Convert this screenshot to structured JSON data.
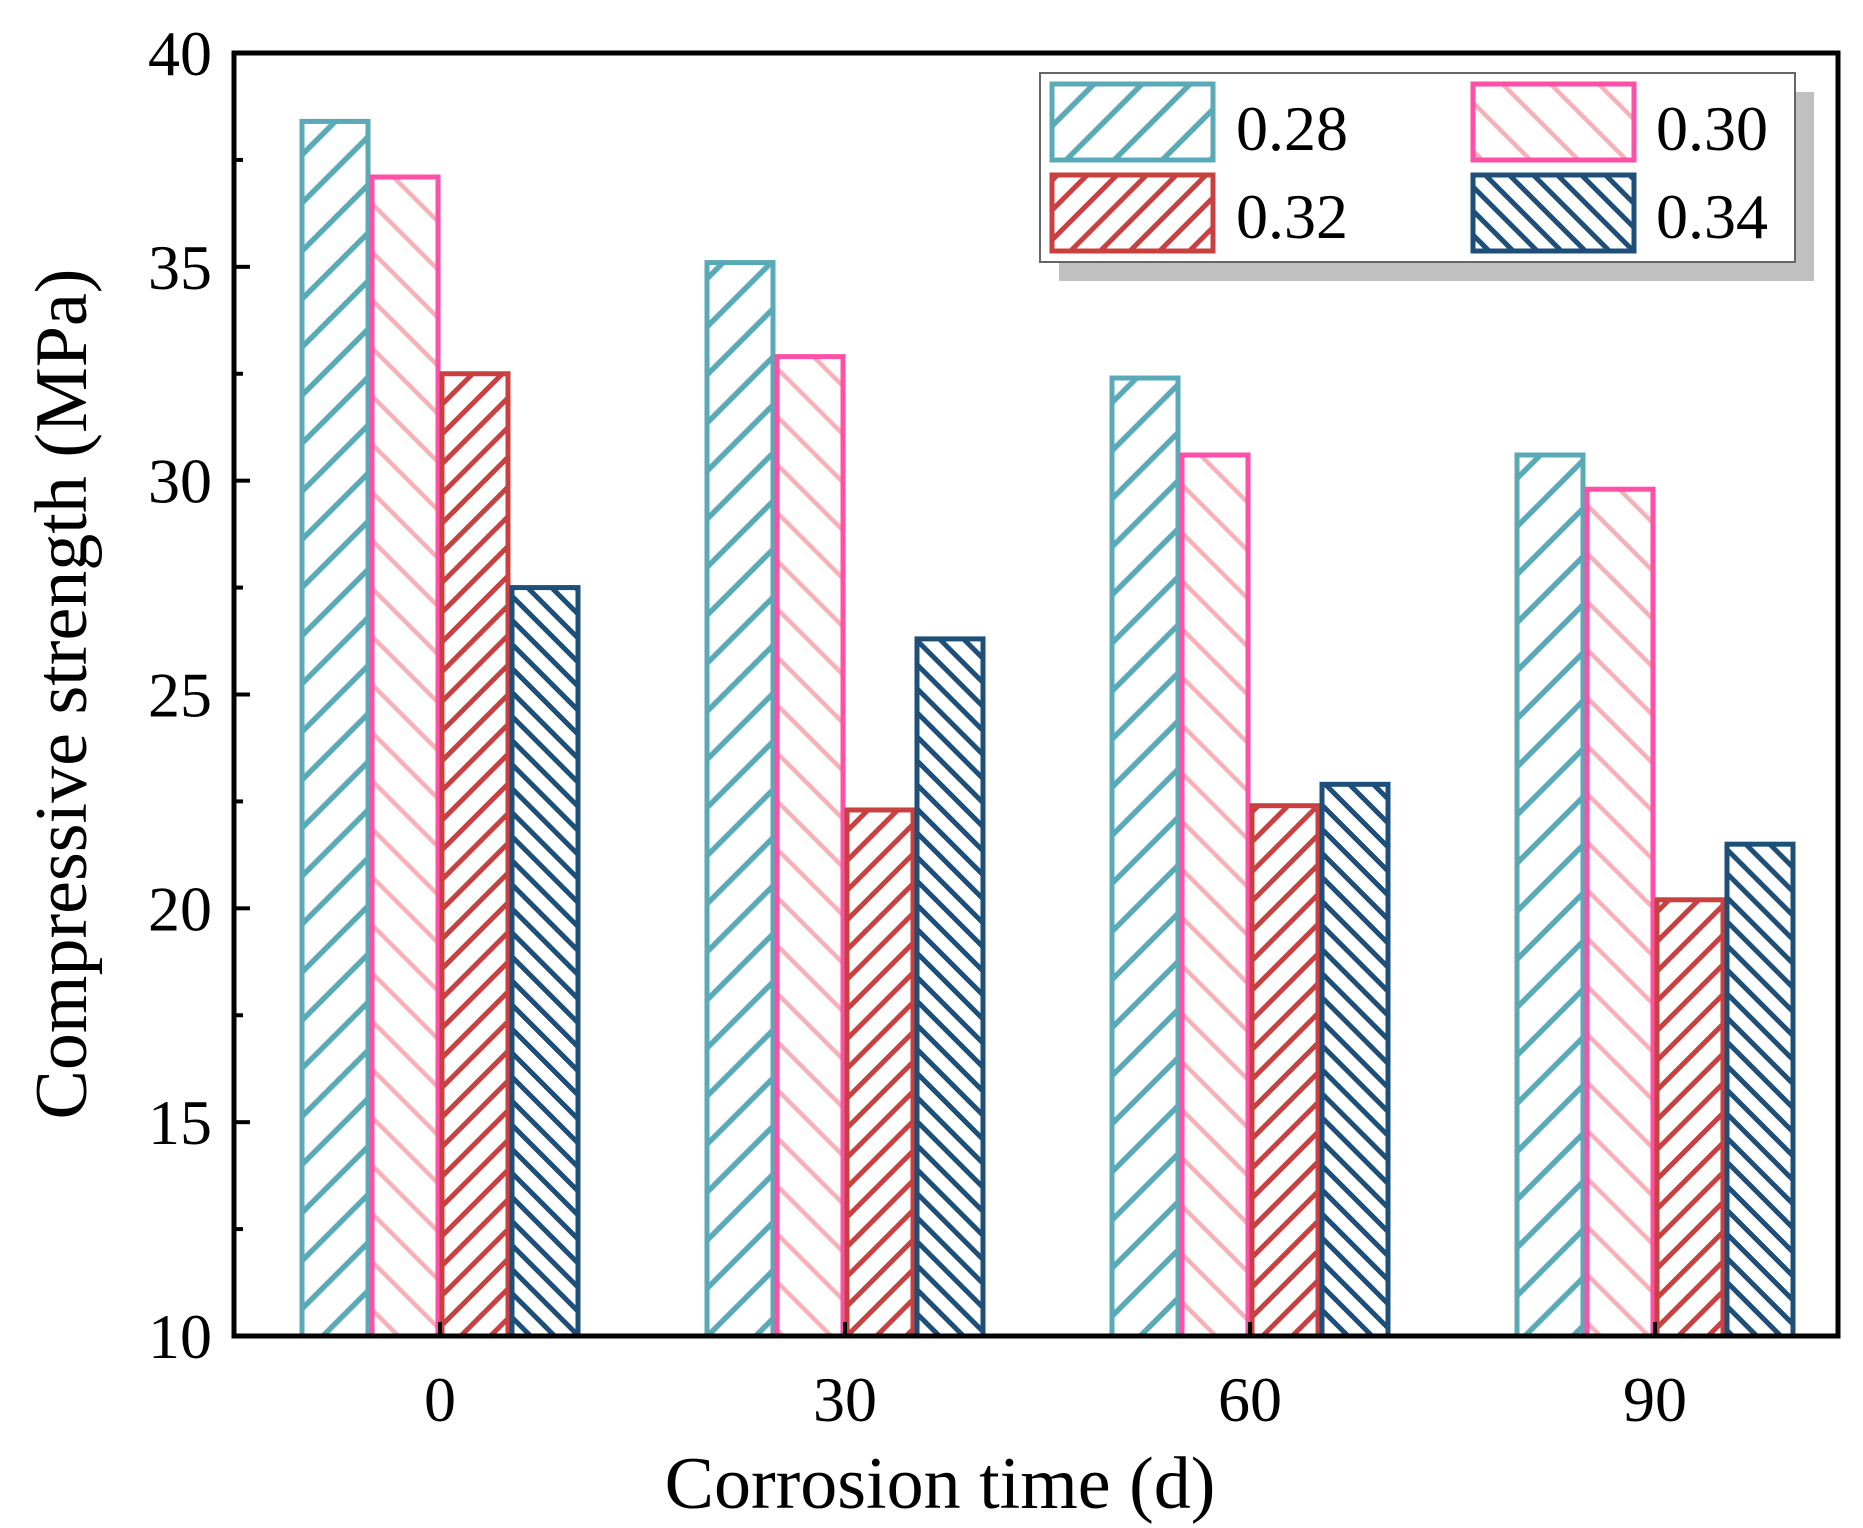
{
  "chart_data": {
    "type": "bar",
    "title": "",
    "xlabel": "Corrosion time (d)",
    "ylabel": "Compressive strength (MPa)",
    "categories": [
      "0",
      "30",
      "60",
      "90"
    ],
    "ylim": [
      10,
      40
    ],
    "yticks": [
      "10",
      "15",
      "20",
      "25",
      "30",
      "35",
      "40"
    ],
    "grid": false,
    "legend_position": "top-right",
    "series": [
      {
        "name": "0.28",
        "values": [
          38.4,
          35.1,
          32.4,
          30.6
        ],
        "color": "#5aa9b6",
        "pattern": "backslash"
      },
      {
        "name": "0.30",
        "values": [
          37.1,
          32.9,
          30.6,
          29.8
        ],
        "color": "#ff4fa6",
        "fill_color": "#f6b1b6",
        "pattern": "slash"
      },
      {
        "name": "0.32",
        "values": [
          32.5,
          22.3,
          22.4,
          20.2
        ],
        "color": "#c8403f",
        "pattern": "backslash-dense"
      },
      {
        "name": "0.34",
        "values": [
          27.5,
          26.3,
          22.9,
          21.5
        ],
        "color": "#1d4f78",
        "pattern": "slash-dense"
      }
    ]
  }
}
